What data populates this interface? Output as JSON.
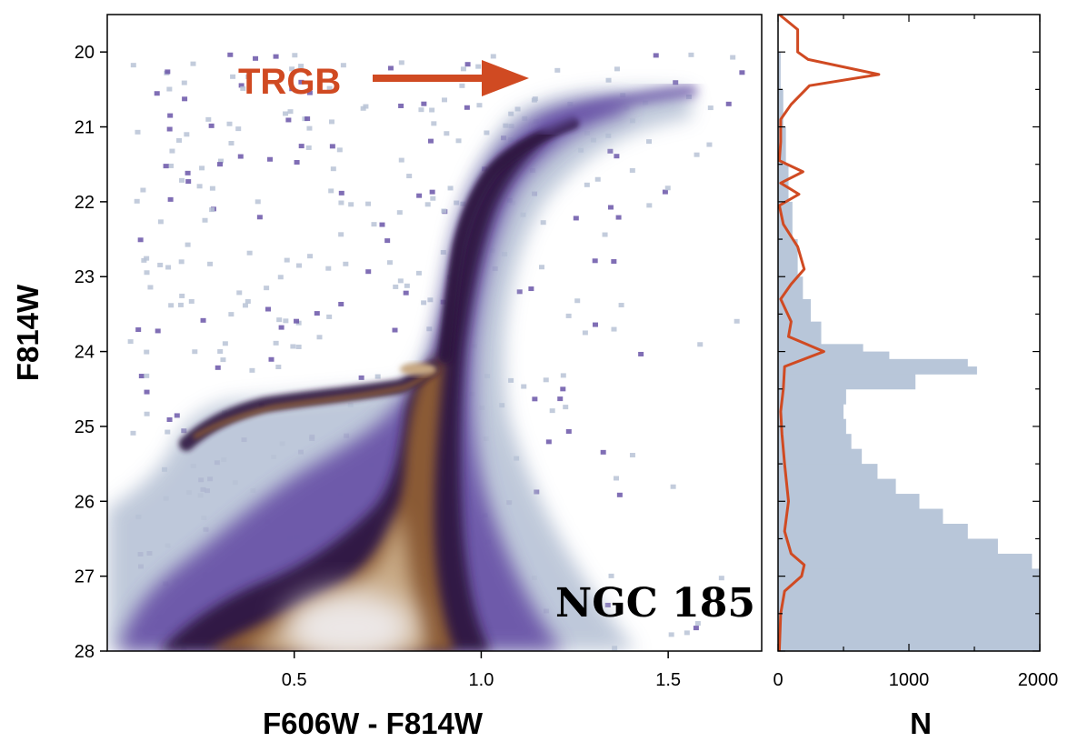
{
  "colors": {
    "accent": "#d04a22",
    "histogram_fill": "#b8c6d9",
    "cmd_light": "#b8c3d6",
    "cmd_mid": "#6a55a8",
    "cmd_dark": "#2e1440",
    "cmd_brown": "#8a5a36",
    "cmd_tan": "#c7a883",
    "cmd_peak": "#ece7e6"
  },
  "annotation": {
    "trgb_label": "TRGB",
    "galaxy_label": "NGC 185"
  },
  "chart_data": [
    {
      "type": "heatmap",
      "title": "",
      "xlabel": "F606W - F814W",
      "ylabel": "F814W",
      "xlim": [
        0.0,
        1.75
      ],
      "ylim": [
        28.0,
        19.5
      ],
      "y_inverted": true,
      "xticks": [
        0.5,
        1.0,
        1.5
      ],
      "xtick_labels": [
        "0.5",
        "1.0",
        "1.5"
      ],
      "yticks": [
        20,
        21,
        22,
        23,
        24,
        25,
        26,
        27,
        28
      ],
      "ytick_labels": [
        "20",
        "21",
        "22",
        "23",
        "24",
        "25",
        "26",
        "27",
        "28"
      ],
      "features": {
        "main_sequence_turnoff": {
          "color": 0.62,
          "mag": 27.7
        },
        "red_giant_branch": [
          {
            "color": 0.88,
            "mag": 25.5
          },
          {
            "color": 0.9,
            "mag": 24.5
          },
          {
            "color": 0.92,
            "mag": 23.5
          },
          {
            "color": 0.96,
            "mag": 22.5
          },
          {
            "color": 1.01,
            "mag": 21.8
          },
          {
            "color": 1.08,
            "mag": 21.3
          },
          {
            "color": 1.22,
            "mag": 20.8
          },
          {
            "color": 1.4,
            "mag": 20.5
          }
        ],
        "horizontal_branch": [
          {
            "color": 0.22,
            "mag": 25.2
          },
          {
            "color": 0.3,
            "mag": 24.8
          },
          {
            "color": 0.5,
            "mag": 24.7
          },
          {
            "color": 0.7,
            "mag": 24.6
          },
          {
            "color": 0.86,
            "mag": 24.4
          }
        ],
        "red_clump": {
          "color": 0.84,
          "mag": 24.3
        }
      }
    },
    {
      "type": "bar",
      "title": "",
      "xlabel": "N",
      "ylabel": "",
      "orientation": "horizontal",
      "xlim": [
        0,
        2000
      ],
      "ylim": [
        28.0,
        19.5
      ],
      "xticks": [
        0,
        1000,
        2000
      ],
      "xtick_labels": [
        "0",
        "1000",
        "2000"
      ],
      "bin_edges": [
        20.0,
        20.5,
        21.0,
        21.5,
        22.0,
        22.5,
        23.0,
        23.3,
        23.6,
        23.9,
        24.0,
        24.1,
        24.2,
        24.3,
        24.5,
        24.7,
        24.9,
        25.1,
        25.3,
        25.5,
        25.7,
        25.9,
        26.1,
        26.3,
        26.5,
        26.7,
        26.9,
        28.0
      ],
      "values": [
        20,
        40,
        60,
        80,
        110,
        150,
        190,
        250,
        330,
        650,
        850,
        1450,
        1520,
        1050,
        520,
        500,
        520,
        560,
        640,
        760,
        900,
        1080,
        1260,
        1450,
        1680,
        1940,
        2000
      ],
      "series": [
        {
          "name": "",
          "type": "line",
          "y": [
            19.5,
            19.7,
            20.0,
            20.1,
            20.3,
            20.45,
            20.7,
            20.9,
            21.2,
            21.45,
            21.6,
            21.75,
            21.9,
            22.05,
            22.3,
            22.6,
            22.9,
            23.1,
            23.3,
            23.6,
            23.8,
            24.0,
            24.2,
            24.5,
            24.8,
            25.1,
            25.5,
            26.0,
            26.4,
            26.7,
            26.85,
            27.0,
            27.2,
            27.5,
            28.0
          ],
          "x": [
            10,
            150,
            150,
            230,
            770,
            240,
            100,
            20,
            20,
            10,
            190,
            20,
            160,
            10,
            40,
            150,
            200,
            100,
            20,
            100,
            80,
            350,
            50,
            40,
            20,
            30,
            50,
            80,
            50,
            100,
            200,
            180,
            50,
            20,
            10
          ]
        }
      ]
    }
  ]
}
